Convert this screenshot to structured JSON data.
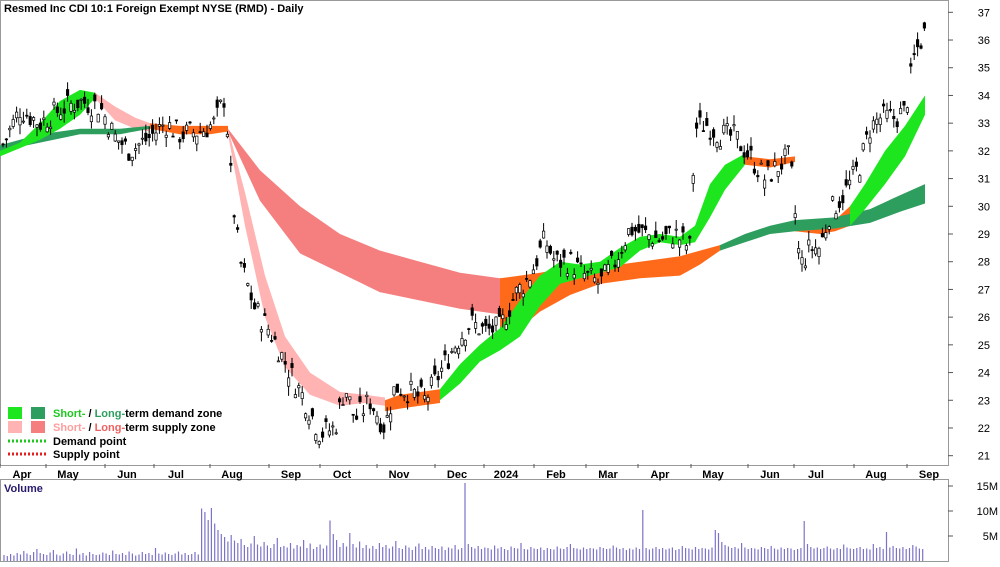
{
  "title": "Resmed Inc CDI 10:1 Foreign Exempt NYSE (RMD) - Daily",
  "volume_label": "Volume",
  "legend": {
    "demand_zone_short": "Short-",
    "demand_zone_sep": " / ",
    "demand_zone_long": "Long-",
    "demand_zone_rest": "term demand zone",
    "supply_zone_short": "Short-",
    "supply_zone_sep": " / ",
    "supply_zone_long": "Long-",
    "supply_zone_rest": "term supply zone",
    "demand_point": "Demand point",
    "supply_point": "Supply point"
  },
  "colors": {
    "short_demand": "#1ee61e",
    "long_demand": "#2e9e5e",
    "short_supply": "#ffb3b3",
    "long_supply": "#f57f7f",
    "trend_orange": "#ff6a1a",
    "candle": "#000000",
    "volume_bar": "#7b73c8",
    "demand_point": "#1ec81e",
    "supply_point": "#e61e1e",
    "legend_short_demand_text": "#1ec81e",
    "legend_long_demand_text": "#2e9e5e",
    "legend_short_supply_text": "#ff9e9e",
    "legend_long_supply_text": "#f06060"
  },
  "chart_data": {
    "type": "candlestick",
    "ylim": [
      20.7,
      37.3
    ],
    "y_ticks": [
      21,
      22,
      23,
      24,
      25,
      26,
      27,
      28,
      29,
      30,
      31,
      32,
      33,
      34,
      35,
      36,
      37
    ],
    "volume_ticks": [
      "5M",
      "10M",
      "15M"
    ],
    "x_labels": [
      "Apr",
      "May",
      "Jun",
      "Jul",
      "Aug",
      "Sep",
      "Oct",
      "Nov",
      "Dec",
      "2024",
      "Feb",
      "Mar",
      "Apr",
      "May",
      "Jun",
      "Jul",
      "Aug",
      "Sep"
    ],
    "price_path": [
      [
        0,
        32.0
      ],
      [
        20,
        33.5
      ],
      [
        40,
        33.0
      ],
      [
        60,
        33.5
      ],
      [
        80,
        33.8
      ],
      [
        100,
        33.6
      ],
      [
        115,
        32.5
      ],
      [
        130,
        32.0
      ],
      [
        150,
        32.5
      ],
      [
        165,
        33.0
      ],
      [
        180,
        32.6
      ],
      [
        200,
        32.7
      ],
      [
        215,
        33.0
      ],
      [
        225,
        34.0
      ],
      [
        232,
        30.5
      ],
      [
        240,
        28.0
      ],
      [
        255,
        26.3
      ],
      [
        270,
        25.5
      ],
      [
        290,
        24.0
      ],
      [
        305,
        23.0
      ],
      [
        320,
        21.8
      ],
      [
        335,
        22.0
      ],
      [
        345,
        23.5
      ],
      [
        355,
        22.3
      ],
      [
        370,
        23.0
      ],
      [
        385,
        22.0
      ],
      [
        395,
        23.5
      ],
      [
        410,
        23.3
      ],
      [
        425,
        23.0
      ],
      [
        440,
        24.0
      ],
      [
        455,
        25.0
      ],
      [
        470,
        25.8
      ],
      [
        485,
        25.5
      ],
      [
        500,
        25.6
      ],
      [
        515,
        26.8
      ],
      [
        530,
        27.5
      ],
      [
        545,
        28.8
      ],
      [
        555,
        28.0
      ],
      [
        570,
        28.0
      ],
      [
        585,
        27.5
      ],
      [
        600,
        27.2
      ],
      [
        615,
        28.0
      ],
      [
        630,
        29.2
      ],
      [
        645,
        29.0
      ],
      [
        660,
        28.8
      ],
      [
        675,
        29.0
      ],
      [
        690,
        28.5
      ],
      [
        695,
        32.8
      ],
      [
        705,
        33.0
      ],
      [
        720,
        32.6
      ],
      [
        735,
        32.5
      ],
      [
        750,
        31.8
      ],
      [
        765,
        31.0
      ],
      [
        780,
        31.5
      ],
      [
        790,
        31.8
      ],
      [
        800,
        27.8
      ],
      [
        810,
        28.5
      ],
      [
        820,
        28.5
      ],
      [
        830,
        29.8
      ],
      [
        845,
        30.5
      ],
      [
        860,
        31.5
      ],
      [
        870,
        32.8
      ],
      [
        880,
        33.2
      ],
      [
        895,
        33.2
      ],
      [
        905,
        33.4
      ],
      [
        915,
        35.5
      ],
      [
        925,
        36.3
      ]
    ],
    "volume_values": [
      1.2,
      1.0,
      1.4,
      1.1,
      1.6,
      1.3,
      2.0,
      1.5,
      1.2,
      1.8,
      2.4,
      1.6,
      1.4,
      1.2,
      1.7,
      2.2,
      1.3,
      1.1,
      1.5,
      1.9,
      1.4,
      1.2,
      2.5,
      1.3,
      1.6,
      1.1,
      1.8,
      1.4,
      1.2,
      1.3,
      1.7,
      1.5,
      1.2,
      2.1,
      1.4,
      1.3,
      1.6,
      1.2,
      1.9,
      1.5,
      1.1,
      1.3,
      1.8,
      1.4,
      1.6,
      1.2,
      2.6,
      1.5,
      1.3,
      1.7,
      1.4,
      1.2,
      1.5,
      1.9,
      1.3,
      1.6,
      1.2,
      1.4,
      1.8,
      1.3,
      10.5,
      9.8,
      8.2,
      10.6,
      7.5,
      6.2,
      5.4,
      4.8,
      3.9,
      5.2,
      4.1,
      3.6,
      4.4,
      3.2,
      2.8,
      3.5,
      5.0,
      3.3,
      2.9,
      3.8,
      3.1,
      2.6,
      3.4,
      4.6,
      2.8,
      3.0,
      2.7,
      3.6,
      2.5,
      3.2,
      2.9,
      4.2,
      2.6,
      3.5,
      2.4,
      2.8,
      3.3,
      2.5,
      3.1,
      8.1,
      5.4,
      4.2,
      2.8,
      3.6,
      2.9,
      5.6,
      3.4,
      2.7,
      3.9,
      2.6,
      3.2,
      2.5,
      3.0,
      2.4,
      3.6,
      2.8,
      3.2,
      2.5,
      2.9,
      4.0,
      2.6,
      2.4,
      3.1,
      2.7,
      2.2,
      2.9,
      3.5,
      2.4,
      2.8,
      2.3,
      3.0,
      2.6,
      2.4,
      2.9,
      2.2,
      2.7,
      2.5,
      3.2,
      2.3,
      2.6,
      15.6,
      3.4,
      2.8,
      2.5,
      3.0,
      2.4,
      2.7,
      2.6,
      2.3,
      3.1,
      2.5,
      2.8,
      2.4,
      2.2,
      2.9,
      2.6,
      2.5,
      3.6,
      2.4,
      2.3,
      2.8,
      2.5,
      2.4,
      2.7,
      2.2,
      2.6,
      2.4,
      2.3,
      2.9,
      2.5,
      2.4,
      2.8,
      3.4,
      2.6,
      2.5,
      2.3,
      2.7,
      2.4,
      2.6,
      2.5,
      2.3,
      2.8,
      2.6,
      2.4,
      2.5,
      3.1,
      2.7,
      2.4,
      2.6,
      2.2,
      2.5,
      2.3,
      2.7,
      2.4,
      10.2,
      2.6,
      2.3,
      2.5,
      2.8,
      2.4,
      2.6,
      2.3,
      2.5,
      2.7,
      2.2,
      2.4,
      3.0,
      2.6,
      2.5,
      2.3,
      2.8,
      2.4,
      2.6,
      2.5,
      2.3,
      2.7,
      6.2,
      5.6,
      3.8,
      3.2,
      2.9,
      2.6,
      2.8,
      2.5,
      3.6,
      2.7,
      2.4,
      2.6,
      2.5,
      2.3,
      2.8,
      2.6,
      2.4,
      3.0,
      2.5,
      2.3,
      2.7,
      2.4,
      2.6,
      2.5,
      2.2,
      2.4,
      2.6,
      8.0,
      3.4,
      2.8,
      2.5,
      2.7,
      2.4,
      2.6,
      2.9,
      2.5,
      2.3,
      2.6,
      2.4,
      3.3,
      2.7,
      2.5,
      2.4,
      2.6,
      2.8,
      2.4,
      2.5,
      2.3,
      3.4,
      2.6,
      2.8,
      2.4,
      5.8,
      2.7,
      3.0,
      2.6,
      2.5,
      2.8,
      2.4,
      2.6,
      3.2,
      2.9,
      2.5,
      2.4
    ]
  }
}
